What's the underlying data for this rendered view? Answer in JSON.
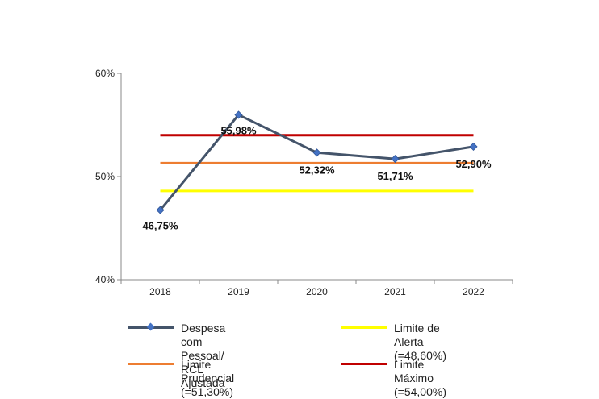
{
  "chart_data": {
    "type": "line",
    "categories": [
      "2018",
      "2019",
      "2020",
      "2021",
      "2022"
    ],
    "ylim": [
      40,
      60
    ],
    "yticks": [
      40,
      50,
      60
    ],
    "ytick_labels": [
      "40%",
      "50%",
      "60%"
    ],
    "series": [
      {
        "name": "Despesa com Pessoal/\nRCL Ajustada",
        "values": [
          46.75,
          55.98,
          52.32,
          51.71,
          52.9
        ],
        "labels": [
          "46,75%",
          "55,98%",
          "52,32%",
          "51,71%",
          "52,90%"
        ],
        "color": "#44546a",
        "marker": "diamond",
        "marker_color": "#4472c4"
      },
      {
        "name": "Limite de Alerta (=48,60%)",
        "values": [
          48.6,
          48.6,
          48.6,
          48.6,
          48.6
        ],
        "color": "#ffff00"
      },
      {
        "name": "Limite Prudencial (=51,30%)",
        "values": [
          51.3,
          51.3,
          51.3,
          51.3,
          51.3
        ],
        "color": "#ed7d31"
      },
      {
        "name": "Limite Máximo (=54,00%)",
        "values": [
          54.0,
          54.0,
          54.0,
          54.0,
          54.0
        ],
        "color": "#c00000"
      }
    ],
    "grid": false,
    "legend_position": "bottom"
  }
}
